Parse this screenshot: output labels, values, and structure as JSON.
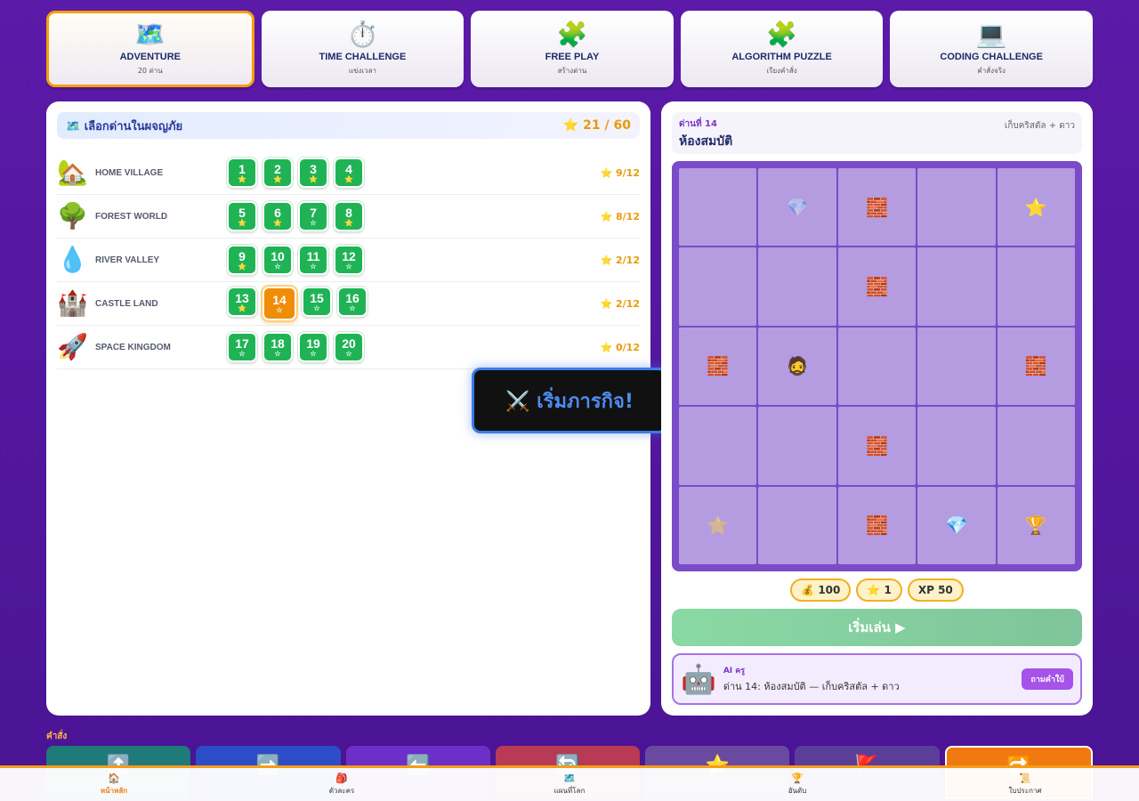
{
  "modes": [
    {
      "icon": "🗺️",
      "title": "ADVENTURE",
      "sub": "20 ด่าน",
      "active": true
    },
    {
      "icon": "⏱️",
      "title": "TIME CHALLENGE",
      "sub": "แข่งเวลา"
    },
    {
      "icon": "🧩",
      "title": "FREE PLAY",
      "sub": "สร้างด่าน"
    },
    {
      "icon": "🧩",
      "title": "ALGORITHM PUZZLE",
      "sub": "เรียงคำสั่ง"
    },
    {
      "icon": "💻",
      "title": "CODING CHALLENGE",
      "sub": "คำสั่งจริง"
    }
  ],
  "left": {
    "title": "🗺️ เลือกด่านในผจญภัย",
    "total": "⭐ 21 / 60",
    "worlds": [
      {
        "icon": "🏡",
        "name": "HOME VILLAGE",
        "count": "⭐ 9/12",
        "levels": [
          {
            "n": "1",
            "s": "⭐"
          },
          {
            "n": "2",
            "s": "⭐"
          },
          {
            "n": "3",
            "s": "⭐"
          },
          {
            "n": "4",
            "s": "⭐"
          }
        ]
      },
      {
        "icon": "🌳",
        "name": "FOREST WORLD",
        "count": "⭐ 8/12",
        "levels": [
          {
            "n": "5",
            "s": "⭐"
          },
          {
            "n": "6",
            "s": "⭐"
          },
          {
            "n": "7",
            "s": "☆"
          },
          {
            "n": "8",
            "s": "⭐"
          }
        ]
      },
      {
        "icon": "💧",
        "name": "RIVER VALLEY",
        "count": "⭐ 2/12",
        "levels": [
          {
            "n": "9",
            "s": "⭐"
          },
          {
            "n": "10",
            "s": "☆"
          },
          {
            "n": "11",
            "s": "☆"
          },
          {
            "n": "12",
            "s": "☆"
          }
        ]
      },
      {
        "icon": "🏰",
        "name": "CASTLE LAND",
        "count": "⭐ 2/12",
        "levels": [
          {
            "n": "13",
            "s": "⭐"
          },
          {
            "n": "14",
            "s": "☆",
            "current": true
          },
          {
            "n": "15",
            "s": "☆"
          },
          {
            "n": "16",
            "s": "☆"
          }
        ]
      },
      {
        "icon": "🚀",
        "name": "SPACE KINGDOM",
        "count": "⭐ 0/12",
        "levels": [
          {
            "n": "17",
            "s": "☆"
          },
          {
            "n": "18",
            "s": "☆"
          },
          {
            "n": "19",
            "s": "☆"
          },
          {
            "n": "20",
            "s": "☆"
          }
        ]
      }
    ]
  },
  "popup": {
    "label": "⚔️ เริ่มภารกิจ!"
  },
  "right": {
    "level_label": "ด่านที่ 14",
    "level_name": "ห้องสมบัติ",
    "goal": "เก็บคริสตัล + ดาว",
    "board": [
      [
        "",
        "💎f",
        "🧱",
        "",
        "⭐"
      ],
      [
        "",
        "",
        "🧱",
        "",
        ""
      ],
      [
        "🧱",
        "🧔",
        "",
        "",
        "🧱"
      ],
      [
        "",
        "",
        "🧱",
        "",
        ""
      ],
      [
        "⭐f",
        "",
        "🧱",
        "💎",
        "🏆"
      ]
    ],
    "rewards": [
      "💰 100",
      "⭐ 1",
      "XP 50"
    ],
    "play_label": "เริ่มเล่น ▶",
    "ai": {
      "icon": "🤖",
      "tag": "AI ครู",
      "message": "ด่าน 14: ห้องสมบัติ — เก็บคริสตัล + ดาว",
      "button": "ถามคำใบ้"
    }
  },
  "commands": {
    "label": "คำสั่ง",
    "icons": [
      "⬆️",
      "➡️",
      "⬅️",
      "🔄",
      "⭐",
      "🚩",
      "🔁"
    ]
  },
  "bottom_nav": [
    {
      "icon": "🏠",
      "label": "หน้าหลัก",
      "active": true
    },
    {
      "icon": "🎒",
      "label": "ตัวละคร"
    },
    {
      "icon": "🗺️",
      "label": "แผนที่โลก"
    },
    {
      "icon": "🏆",
      "label": "อันดับ"
    },
    {
      "icon": "📜",
      "label": "ใบประกาศ"
    }
  ]
}
